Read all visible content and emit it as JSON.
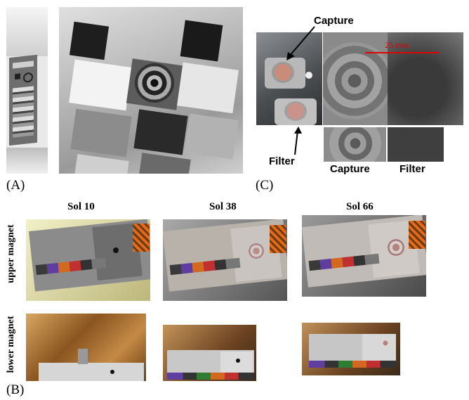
{
  "panels": {
    "a": {
      "label": "(A)"
    },
    "b": {
      "label": "(B)"
    },
    "c": {
      "label": "(C)"
    }
  },
  "panel_c": {
    "capture_label": "Capture",
    "filter_label": "Filter",
    "scale_text": "25 mm",
    "bottom_capture": "Capture",
    "bottom_filter": "Filter"
  },
  "panel_b": {
    "columns": [
      "Sol 10",
      "Sol 38",
      "Sol 66"
    ],
    "rows": [
      "upper magnet",
      "lower magnet"
    ]
  },
  "colors": {
    "scale_red": "#e00000",
    "copper": "#b5651d",
    "plate_gray": "#8d8d8d"
  }
}
